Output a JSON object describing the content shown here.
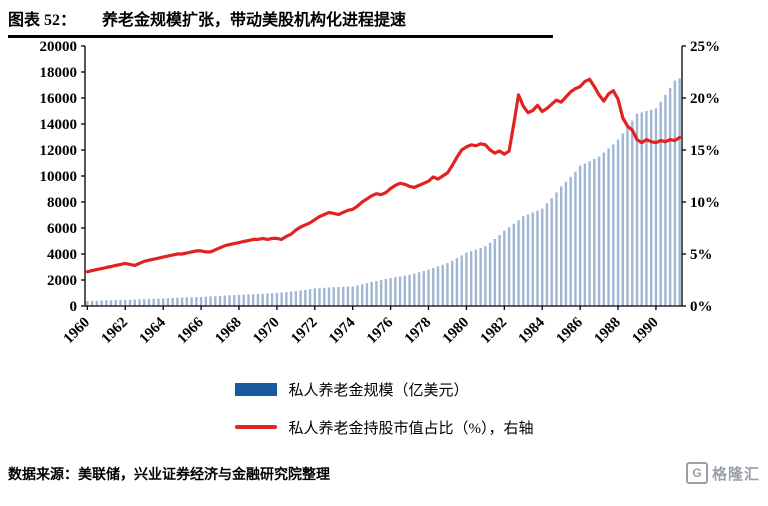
{
  "header": {
    "label": "图表 52：",
    "title": "养老金规模扩张，带动美股机构化进程提速"
  },
  "chart_data": {
    "type": "bar+line",
    "x_start_year": 1960,
    "points_per_year": 4,
    "x_tick_years": [
      1960,
      1962,
      1964,
      1966,
      1968,
      1970,
      1972,
      1974,
      1976,
      1978,
      1980,
      1982,
      1984,
      1986,
      1988,
      1990
    ],
    "left_axis": {
      "min": 0,
      "max": 20000,
      "step": 2000
    },
    "right_axis": {
      "min": 0,
      "max": 25,
      "step": 5,
      "suffix": "%"
    },
    "series": [
      {
        "name": "私人养老金规模（亿美元）",
        "type": "bar",
        "axis": "left",
        "legend_color": "#1b5aa0",
        "bar_color": "#9fb6d4",
        "values": [
          380,
          392,
          404,
          417,
          430,
          440,
          450,
          460,
          470,
          482,
          495,
          508,
          520,
          535,
          550,
          565,
          580,
          597,
          614,
          632,
          650,
          662,
          675,
          688,
          700,
          720,
          740,
          760,
          780,
          800,
          820,
          840,
          860,
          875,
          890,
          905,
          920,
          940,
          960,
          980,
          1000,
          1036,
          1073,
          1111,
          1150,
          1198,
          1247,
          1298,
          1350,
          1374,
          1399,
          1424,
          1450,
          1462,
          1474,
          1487,
          1500,
          1582,
          1668,
          1759,
          1850,
          1922,
          1996,
          2072,
          2150,
          2210,
          2272,
          2335,
          2400,
          2494,
          2592,
          2694,
          2800,
          2918,
          3041,
          3169,
          3300,
          3486,
          3683,
          3891,
          4100,
          4218,
          4339,
          4464,
          4600,
          4868,
          5152,
          5453,
          5800,
          6057,
          6325,
          6606,
          6900,
          7043,
          7189,
          7338,
          7500,
          7891,
          8302,
          8735,
          9200,
          9565,
          9944,
          10339,
          10800,
          10966,
          11135,
          11306,
          11500,
          11803,
          12114,
          12434,
          12800,
          13269,
          13755,
          14259,
          14800,
          14898,
          14997,
          15097,
          15200,
          15710,
          16238,
          16783,
          17348,
          17500
        ]
      },
      {
        "name": "私人养老金持股市值占比（%），右轴",
        "type": "line",
        "axis": "right",
        "color": "#e02222",
        "values": [
          3.3,
          3.4,
          3.5,
          3.6,
          3.7,
          3.8,
          3.9,
          4.0,
          4.1,
          4.0,
          3.9,
          4.1,
          4.3,
          4.4,
          4.5,
          4.6,
          4.7,
          4.8,
          4.9,
          5.0,
          5.0,
          5.1,
          5.2,
          5.3,
          5.3,
          5.2,
          5.2,
          5.4,
          5.6,
          5.8,
          5.9,
          6.0,
          6.1,
          6.2,
          6.3,
          6.4,
          6.4,
          6.5,
          6.4,
          6.5,
          6.5,
          6.4,
          6.7,
          6.9,
          7.3,
          7.6,
          7.8,
          8.0,
          8.3,
          8.6,
          8.8,
          9.0,
          8.9,
          8.8,
          9.0,
          9.2,
          9.3,
          9.6,
          10.0,
          10.3,
          10.6,
          10.8,
          10.7,
          10.9,
          11.3,
          11.6,
          11.8,
          11.7,
          11.5,
          11.4,
          11.6,
          11.8,
          12.0,
          12.4,
          12.2,
          12.5,
          12.8,
          13.5,
          14.3,
          15.0,
          15.3,
          15.5,
          15.4,
          15.6,
          15.5,
          15.0,
          14.7,
          14.9,
          14.6,
          14.9,
          17.5,
          20.3,
          19.2,
          18.6,
          18.8,
          19.3,
          18.7,
          19.0,
          19.4,
          19.8,
          19.6,
          20.1,
          20.6,
          20.9,
          21.1,
          21.6,
          21.8,
          21.1,
          20.3,
          19.7,
          20.4,
          20.7,
          19.9,
          18.1,
          17.3,
          16.9,
          16.0,
          15.7,
          16.0,
          15.8,
          15.7,
          15.9,
          15.8,
          16.0,
          15.9,
          16.2
        ]
      }
    ]
  },
  "footer": {
    "source": "数据来源：美联储，兴业证券经济与金融研究院整理",
    "logo_mark": "G",
    "logo_text": "格隆汇"
  }
}
